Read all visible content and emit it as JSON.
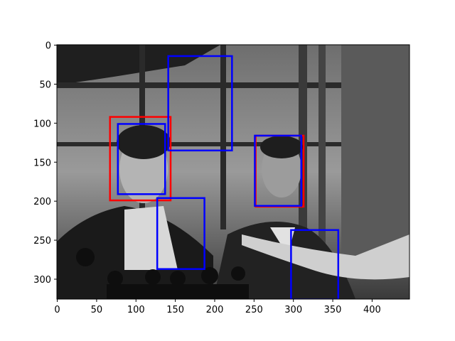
{
  "chart_data": {
    "type": "image",
    "title": "",
    "xlabel": "",
    "ylabel": "",
    "xlim": [
      -0.5,
      447.5
    ],
    "ylim": [
      325.5,
      -0.5
    ],
    "y_axis_inverted": true,
    "grid": false,
    "legend": "none",
    "x_ticks": [
      0,
      50,
      100,
      150,
      200,
      250,
      300,
      350,
      400
    ],
    "y_ticks": [
      0,
      50,
      100,
      150,
      200,
      250,
      300
    ],
    "image": {
      "description": "grayscale photo: woman and man at a press event with microphones in front of a window",
      "width": 448,
      "height": 326
    },
    "boxes": [
      {
        "color": "#ff0000",
        "x0": 67,
        "y0": 92,
        "x1": 144,
        "y1": 199
      },
      {
        "color": "#0000ff",
        "x0": 77,
        "y0": 101,
        "x1": 137,
        "y1": 191
      },
      {
        "color": "#0000ff",
        "x0": 141,
        "y0": 14,
        "x1": 222,
        "y1": 135
      },
      {
        "color": "#ff0000",
        "x0": 252,
        "y0": 116,
        "x1": 313,
        "y1": 207
      },
      {
        "color": "#0000ff",
        "x0": 251,
        "y0": 116,
        "x1": 310,
        "y1": 206
      },
      {
        "color": "#0000ff",
        "x0": 127,
        "y0": 196,
        "x1": 187,
        "y1": 287
      },
      {
        "color": "#0000ff",
        "x0": 297,
        "y0": 237,
        "x1": 357,
        "y1": 326
      }
    ]
  }
}
